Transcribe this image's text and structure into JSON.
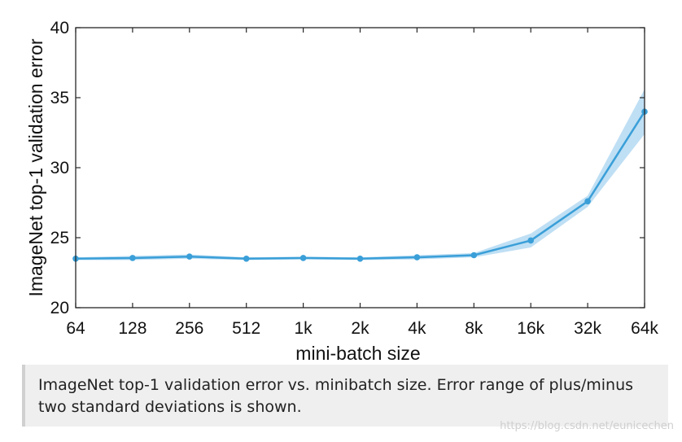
{
  "chart_data": {
    "type": "line",
    "categories": [
      "64",
      "128",
      "256",
      "512",
      "1k",
      "2k",
      "4k",
      "8k",
      "16k",
      "32k",
      "64k"
    ],
    "series": [
      {
        "values": [
          23.5,
          23.55,
          23.65,
          23.5,
          23.55,
          23.5,
          23.6,
          23.75,
          24.8,
          27.6,
          34.0
        ],
        "lower": [
          23.4,
          23.4,
          23.5,
          23.4,
          23.45,
          23.4,
          23.45,
          23.6,
          24.3,
          27.2,
          32.4
        ],
        "upper": [
          23.6,
          23.7,
          23.8,
          23.6,
          23.65,
          23.6,
          23.75,
          23.9,
          25.3,
          28.0,
          35.6
        ]
      }
    ],
    "xlabel": "mini-batch size",
    "ylabel": "ImageNet top-1 validation error",
    "ylim": [
      20,
      40
    ],
    "yticks": [
      "20",
      "25",
      "30",
      "35",
      "40"
    ],
    "grid": false,
    "colors": {
      "line": "#3a9fd8",
      "band": "#a9d4f0",
      "axis": "#262626"
    }
  },
  "caption": "ImageNet top-1 validation error vs. minibatch size. Error range of plus/minus two standard deviations is shown.",
  "watermark": "https://blog.csdn.net/eunicechen"
}
